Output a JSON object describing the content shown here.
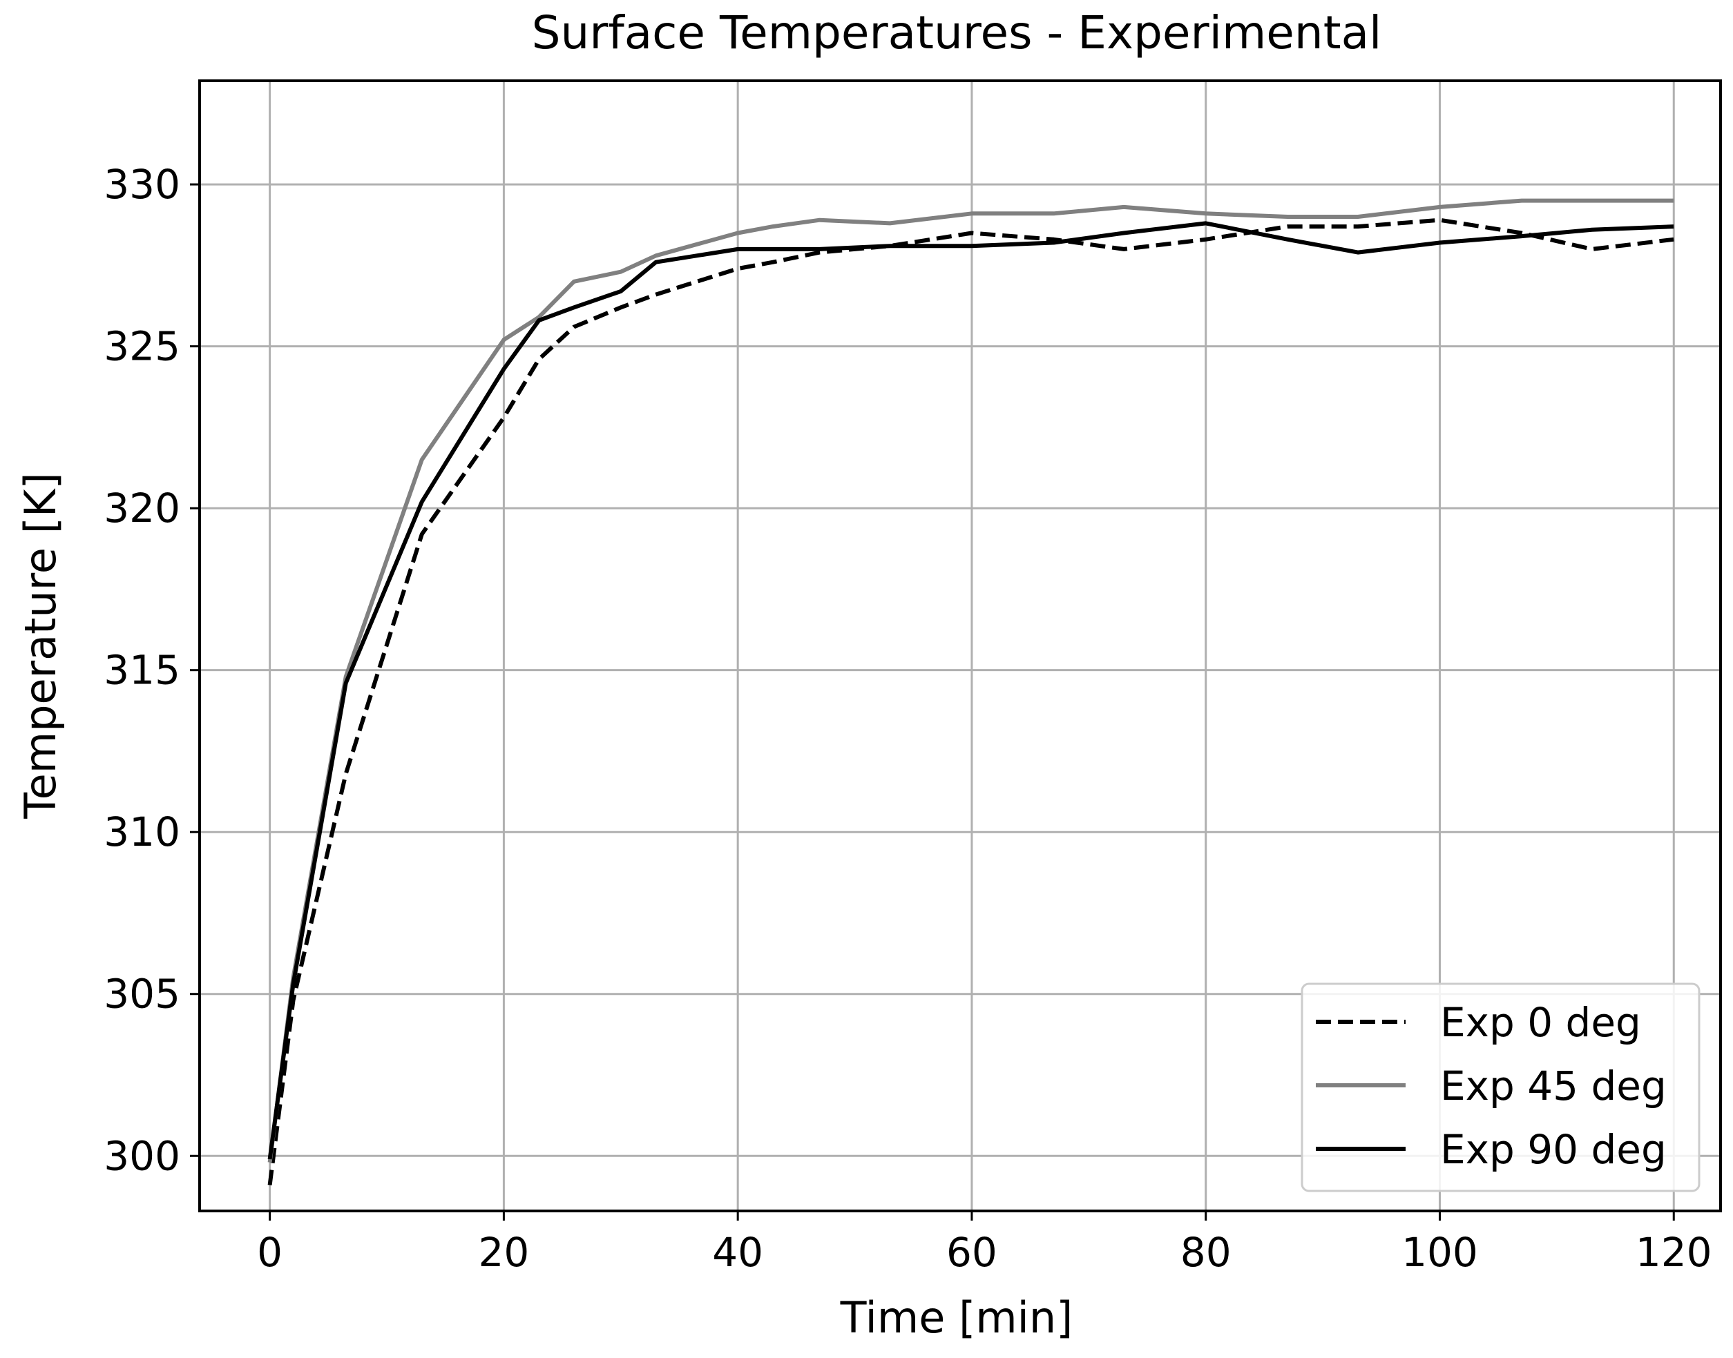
{
  "chart_data": {
    "type": "line",
    "title": "Surface Temperatures - Experimental",
    "xlabel": "Time [min]",
    "ylabel": "Temperature [K]",
    "xlim": [
      -6,
      124
    ],
    "ylim": [
      298.3,
      333.2
    ],
    "xticks": [
      0,
      20,
      40,
      60,
      80,
      100,
      120
    ],
    "yticks": [
      300,
      305,
      310,
      315,
      320,
      325,
      330
    ],
    "grid": true,
    "legend_position": "lower-right",
    "series": [
      {
        "name": "Exp 0 deg",
        "color": "#000000",
        "style": "dashed",
        "x": [
          0,
          2,
          6.5,
          13,
          20,
          23,
          26,
          30,
          33,
          40,
          43,
          47,
          53,
          60,
          67,
          73,
          80,
          87,
          93,
          100,
          107,
          113,
          120
        ],
        "y": [
          299.1,
          304.8,
          311.8,
          319.2,
          322.8,
          324.6,
          325.6,
          326.2,
          326.6,
          327.4,
          327.6,
          327.9,
          328.1,
          328.5,
          328.3,
          328.0,
          328.3,
          328.7,
          328.7,
          328.9,
          328.5,
          328.0,
          328.3
        ]
      },
      {
        "name": "Exp 45 deg",
        "color": "#808080",
        "style": "solid",
        "x": [
          0,
          2,
          6.5,
          13,
          20,
          23,
          26,
          30,
          33,
          40,
          43,
          47,
          53,
          60,
          67,
          73,
          80,
          87,
          93,
          100,
          107,
          113,
          120
        ],
        "y": [
          299.8,
          305.5,
          314.8,
          321.5,
          325.2,
          325.9,
          327.0,
          327.3,
          327.8,
          328.5,
          328.7,
          328.9,
          328.8,
          329.1,
          329.1,
          329.3,
          329.1,
          329.0,
          329.0,
          329.3,
          329.5,
          329.5,
          329.5
        ]
      },
      {
        "name": "Exp 90 deg",
        "color": "#000000",
        "style": "solid",
        "x": [
          0,
          2,
          6.5,
          13,
          20,
          23,
          26,
          30,
          33,
          40,
          43,
          47,
          53,
          60,
          67,
          73,
          80,
          87,
          93,
          100,
          107,
          113,
          120
        ],
        "y": [
          299.9,
          305.3,
          314.6,
          320.2,
          324.3,
          325.8,
          326.2,
          326.7,
          327.6,
          328.0,
          328.0,
          328.0,
          328.1,
          328.1,
          328.2,
          328.5,
          328.8,
          328.3,
          327.9,
          328.2,
          328.4,
          328.6,
          328.7
        ]
      }
    ]
  }
}
